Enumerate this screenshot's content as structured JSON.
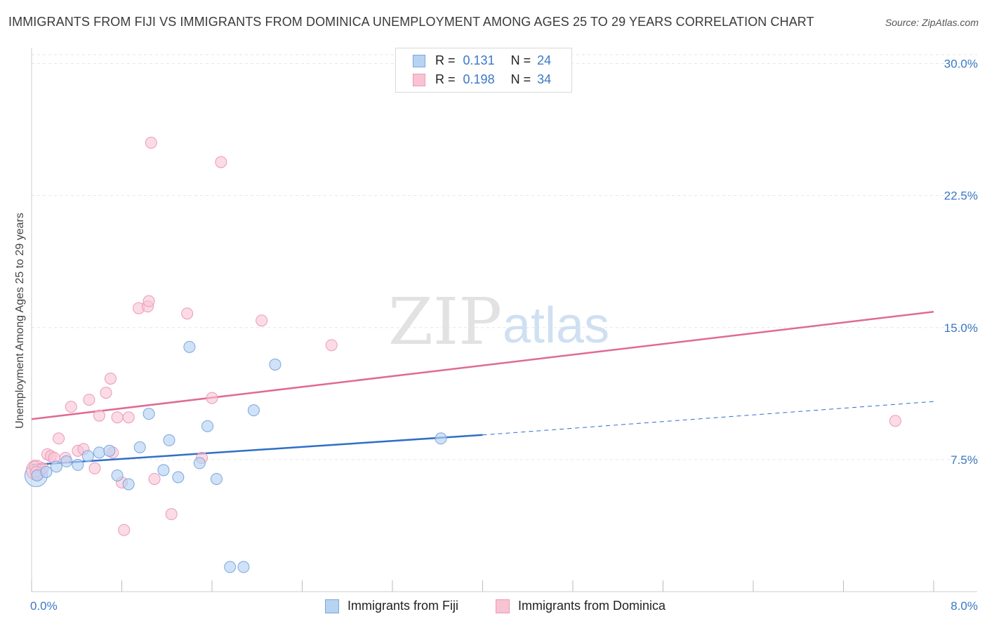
{
  "header": {
    "title": "IMMIGRANTS FROM FIJI VS IMMIGRANTS FROM DOMINICA UNEMPLOYMENT AMONG AGES 25 TO 29 YEARS CORRELATION CHART",
    "source": "Source: ZipAtlas.com"
  },
  "watermark": {
    "zip": "ZIP",
    "atlas": "atlas"
  },
  "legend": {
    "fiji": {
      "r_label": "R =",
      "r_value": "0.131",
      "n_label": "N =",
      "n_value": "24"
    },
    "dominica": {
      "r_label": "R =",
      "r_value": "0.198",
      "n_label": "N =",
      "n_value": "34"
    }
  },
  "colors": {
    "fiji_fill": "#b7d3f2",
    "fiji_stroke": "#7aa6dc",
    "fiji_line": "#2e6fc9",
    "dominica_fill": "#f8c3d3",
    "dominica_stroke": "#ec9ab4",
    "dominica_line": "#e06a95",
    "tick_text": "#3b78c4",
    "grid": "#e6e6e6"
  },
  "chart_data": {
    "type": "scatter",
    "title": "IMMIGRANTS FROM FIJI VS IMMIGRANTS FROM DOMINICA UNEMPLOYMENT AMONG AGES 25 TO 29 YEARS CORRELATION CHART",
    "xlabel": "",
    "ylabel": "Unemployment Among Ages 25 to 29 years",
    "xlim": [
      0,
      8
    ],
    "ylim": [
      0,
      30.5
    ],
    "x_tick_labels": [
      "0.0%",
      "8.0%"
    ],
    "y_ticks": [
      7.5,
      15,
      22.5,
      30
    ],
    "y_tick_labels": [
      "7.5%",
      "15.0%",
      "22.5%",
      "30.0%"
    ],
    "grid": true,
    "legend_position": "top-center",
    "series": [
      {
        "name": "Immigrants from Fiji",
        "points": [
          [
            0.05,
            6.6
          ],
          [
            0.13,
            6.8
          ],
          [
            0.22,
            7.1
          ],
          [
            0.31,
            7.4
          ],
          [
            0.41,
            7.2
          ],
          [
            0.5,
            7.7
          ],
          [
            0.6,
            7.9
          ],
          [
            0.69,
            8.0
          ],
          [
            0.76,
            6.6
          ],
          [
            0.86,
            6.1
          ],
          [
            0.96,
            8.2
          ],
          [
            1.04,
            10.1
          ],
          [
            1.17,
            6.9
          ],
          [
            1.22,
            8.6
          ],
          [
            1.3,
            6.5
          ],
          [
            1.4,
            13.9
          ],
          [
            1.49,
            7.3
          ],
          [
            1.56,
            9.4
          ],
          [
            1.64,
            6.4
          ],
          [
            1.76,
            1.4
          ],
          [
            1.88,
            1.4
          ],
          [
            1.97,
            10.3
          ],
          [
            2.16,
            12.9
          ],
          [
            3.63,
            8.7
          ]
        ],
        "trend": {
          "x": [
            0,
            4.0
          ],
          "y": [
            7.2,
            8.9
          ],
          "extension": {
            "x": [
              4.0,
              8.0
            ],
            "y": [
              8.9,
              10.8
            ]
          }
        }
      },
      {
        "name": "Immigrants from Dominica",
        "points": [
          [
            0.03,
            7.1
          ],
          [
            0.1,
            7.0
          ],
          [
            0.14,
            7.8
          ],
          [
            0.24,
            8.7
          ],
          [
            0.3,
            7.6
          ],
          [
            0.35,
            10.5
          ],
          [
            0.41,
            8.0
          ],
          [
            0.46,
            8.1
          ],
          [
            0.51,
            10.9
          ],
          [
            0.56,
            7.0
          ],
          [
            0.6,
            10.0
          ],
          [
            0.66,
            11.3
          ],
          [
            0.7,
            12.1
          ],
          [
            0.76,
            9.9
          ],
          [
            0.72,
            7.9
          ],
          [
            0.8,
            6.2
          ],
          [
            0.86,
            9.9
          ],
          [
            0.82,
            3.5
          ],
          [
            0.95,
            16.1
          ],
          [
            1.03,
            16.2
          ],
          [
            1.04,
            16.5
          ],
          [
            1.06,
            25.5
          ],
          [
            1.09,
            6.4
          ],
          [
            1.24,
            4.4
          ],
          [
            1.38,
            15.8
          ],
          [
            1.51,
            7.6
          ],
          [
            1.6,
            11.0
          ],
          [
            1.68,
            24.4
          ],
          [
            2.04,
            15.4
          ],
          [
            2.66,
            14.0
          ],
          [
            7.66,
            9.7
          ],
          [
            0.17,
            7.7
          ],
          [
            0.04,
            6.8
          ],
          [
            0.2,
            7.6
          ]
        ],
        "trend": {
          "x": [
            0,
            8.0
          ],
          "y": [
            9.8,
            15.9
          ]
        }
      }
    ]
  },
  "bottom_legend": {
    "fiji_label": "Immigrants from Fiji",
    "dominica_label": "Immigrants from Dominica"
  }
}
